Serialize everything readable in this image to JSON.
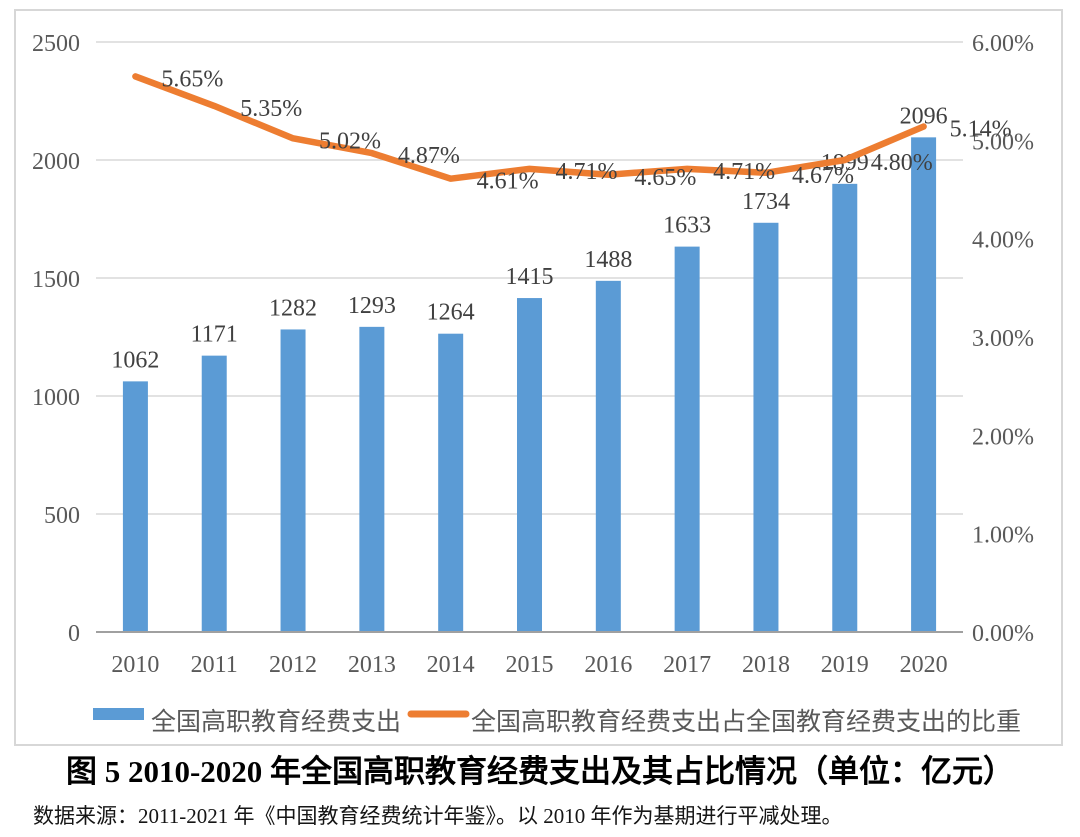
{
  "figure": {
    "caption": "图 5 2010-2020 年全国高职教育经费支出及其占比情况（单位：亿元）",
    "source_note": "数据来源：2011-2021 年《中国教育经费统计年鉴》。以 2010 年作为基期进行平减处理。"
  },
  "chart_data": {
    "type": "bar",
    "subtype": "combo-bar-line-dual-axis",
    "title": "",
    "grid": "horizontal",
    "legend_position": "bottom",
    "categories": [
      "2010",
      "2011",
      "2012",
      "2013",
      "2014",
      "2015",
      "2016",
      "2017",
      "2018",
      "2019",
      "2020"
    ],
    "series": [
      {
        "name": "全国高职教育经费支出",
        "type": "bar",
        "axis": "left",
        "color": "#5B9BD5",
        "values": [
          1062,
          1171,
          1282,
          1293,
          1264,
          1415,
          1488,
          1633,
          1734,
          1899,
          2096
        ],
        "labels": [
          "1062",
          "1171",
          "1282",
          "1293",
          "1264",
          "1415",
          "1488",
          "1633",
          "1734",
          "1899",
          "2096"
        ]
      },
      {
        "name": "全国高职教育经费支出占全国教育经费支出的比重",
        "type": "line",
        "axis": "right",
        "color": "#ED7D31",
        "values": [
          5.65,
          5.35,
          5.02,
          4.87,
          4.61,
          4.71,
          4.65,
          4.71,
          4.67,
          4.8,
          5.14
        ],
        "labels": [
          "5.65%",
          "5.35%",
          "5.02%",
          "4.87%",
          "4.61%",
          "4.71%",
          "4.65%",
          "4.71%",
          "4.67%",
          "4.80%",
          "5.14%"
        ]
      }
    ],
    "left_axis": {
      "min": 0,
      "max": 2500,
      "step": 500,
      "ticks": [
        {
          "value": 2500,
          "label": "2500"
        },
        {
          "value": 2000,
          "label": "2000"
        },
        {
          "value": 1500,
          "label": "1500"
        },
        {
          "value": 1000,
          "label": "1000"
        },
        {
          "value": 500,
          "label": "500"
        },
        {
          "value": 0,
          "label": "0"
        }
      ]
    },
    "right_axis": {
      "min": 0,
      "max": 6,
      "step": 1,
      "ticks": [
        {
          "value": 6,
          "label": "6.00%"
        },
        {
          "value": 5,
          "label": "5.00%"
        },
        {
          "value": 4,
          "label": "4.00%"
        },
        {
          "value": 3,
          "label": "3.00%"
        },
        {
          "value": 2,
          "label": "2.00%"
        },
        {
          "value": 1,
          "label": "1.00%"
        },
        {
          "value": 0,
          "label": "0.00%"
        }
      ]
    }
  },
  "colors": {
    "bar": "#5B9BD5",
    "line": "#ED7D31",
    "gridline": "#D9D9D9",
    "axis_line": "#A0A0A0",
    "tick_text": "#595959",
    "data_label_text": "#404040",
    "legend_text": "#595959"
  }
}
